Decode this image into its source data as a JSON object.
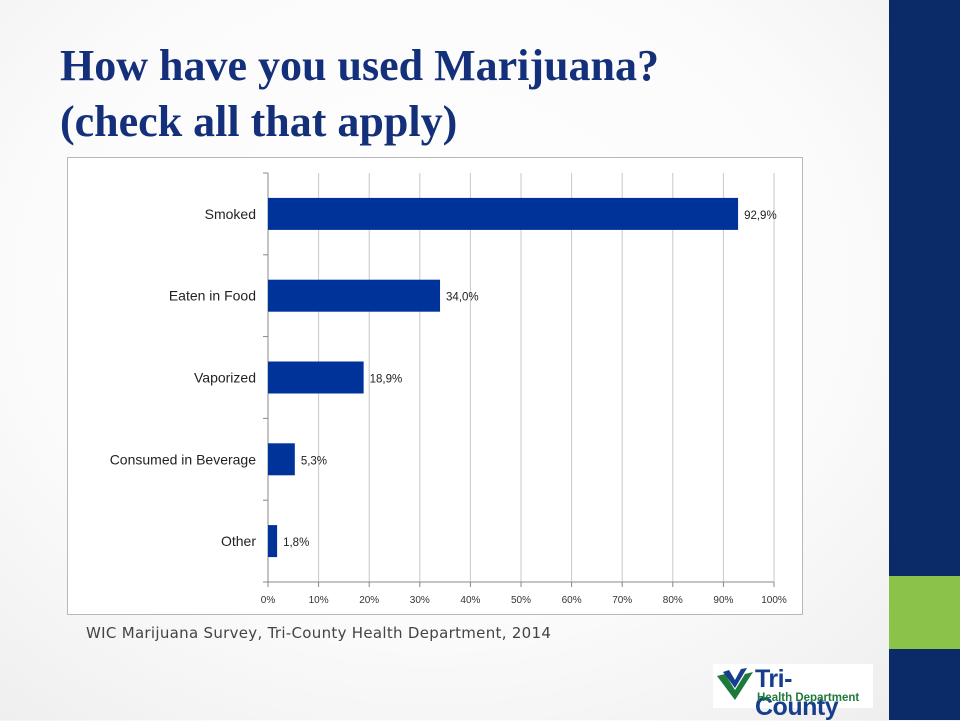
{
  "slide": {
    "title_line1": "How have you used Marijuana?",
    "title_line2": "(check all that apply)",
    "source": "WIC Marijuana Survey, Tri-County Health Department,  2014"
  },
  "logo": {
    "name": "Tri-County",
    "sub": "Health Department"
  },
  "colors": {
    "bar": "#003399",
    "title": "#14307a",
    "band": "#0b2a68",
    "accent": "#8bc34a"
  },
  "chart_data": {
    "type": "bar",
    "orientation": "horizontal",
    "categories": [
      "Smoked",
      "Eaten in Food",
      "Vaporized",
      "Consumed in Beverage",
      "Other"
    ],
    "values": [
      92.9,
      34.0,
      18.9,
      5.3,
      1.8
    ],
    "data_labels": [
      "92,9%",
      "34,0%",
      "18,9%",
      "5,3%",
      "1,8%"
    ],
    "x_ticks": [
      "0%",
      "10%",
      "20%",
      "30%",
      "40%",
      "50%",
      "60%",
      "70%",
      "80%",
      "90%",
      "100%"
    ],
    "xlim": [
      0,
      100
    ],
    "grid": true,
    "legend": "none"
  }
}
